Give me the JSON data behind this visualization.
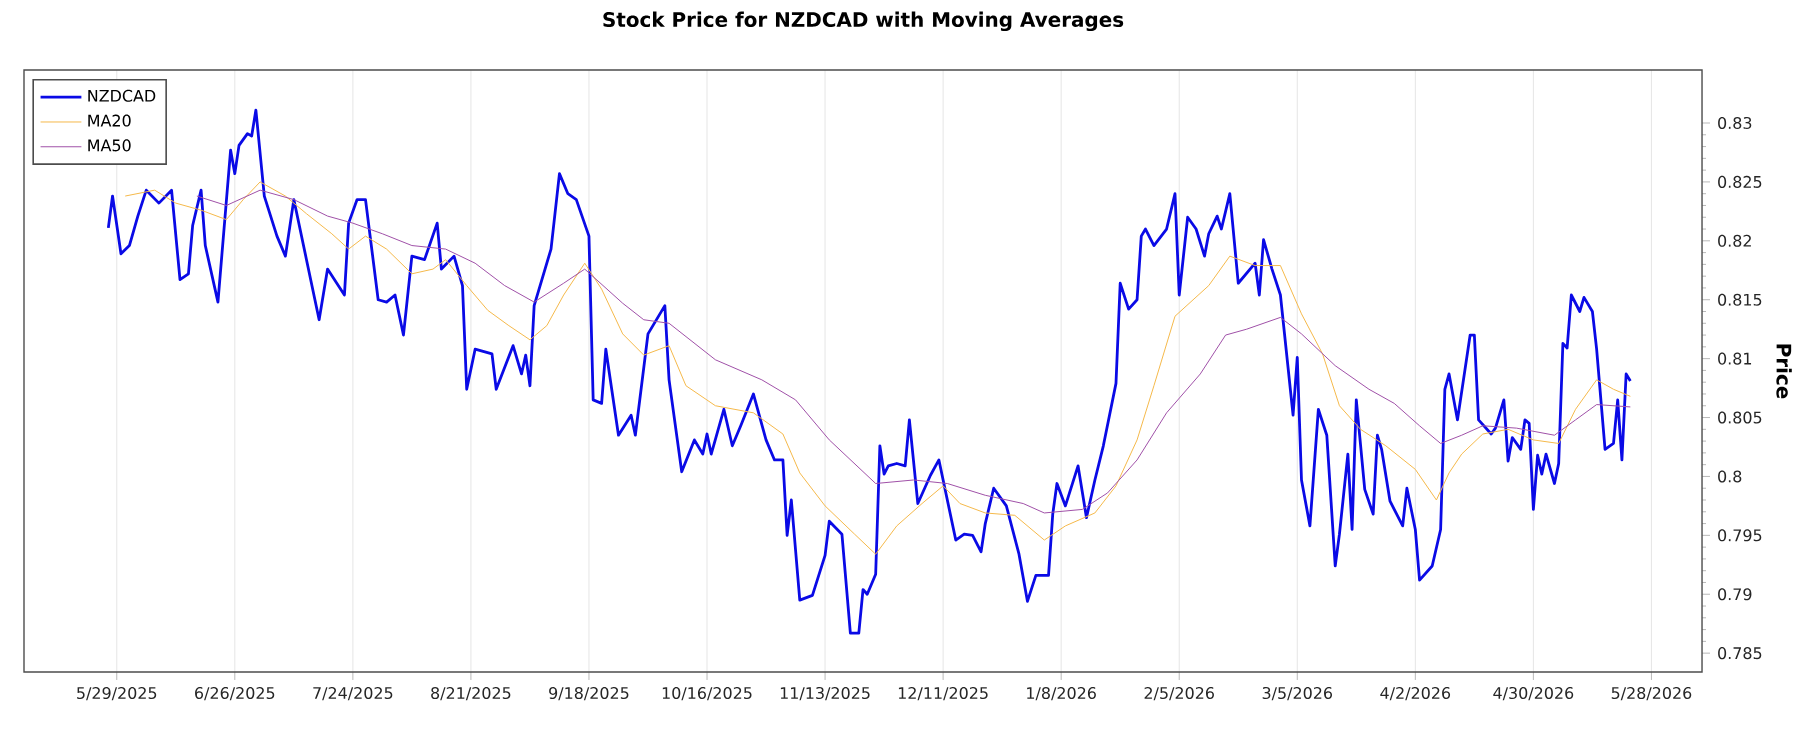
{
  "chart_data": {
    "type": "line",
    "title": "Stock Price for NZDCAD with Moving Averages",
    "ylabel": "Price",
    "xlim": [
      "2025-05-07",
      "2026-06-09"
    ],
    "xticks": [
      {
        "value": "2025-05-29",
        "label": "5/29/2025"
      },
      {
        "value": "2025-06-26",
        "label": "6/26/2025"
      },
      {
        "value": "2025-07-24",
        "label": "7/24/2025"
      },
      {
        "value": "2025-08-21",
        "label": "8/21/2025"
      },
      {
        "value": "2025-09-18",
        "label": "9/18/2025"
      },
      {
        "value": "2025-10-16",
        "label": "10/16/2025"
      },
      {
        "value": "2025-11-13",
        "label": "11/13/2025"
      },
      {
        "value": "2025-12-11",
        "label": "12/11/2025"
      },
      {
        "value": "2026-01-08",
        "label": "1/8/2026"
      },
      {
        "value": "2026-02-05",
        "label": "2/5/2026"
      },
      {
        "value": "2026-03-05",
        "label": "3/5/2026"
      },
      {
        "value": "2026-04-02",
        "label": "4/2/2026"
      },
      {
        "value": "2026-04-30",
        "label": "4/30/2026"
      },
      {
        "value": "2026-05-28",
        "label": "5/28/2026"
      }
    ],
    "ylim": [
      0.7834,
      0.8345
    ],
    "yticks": [
      0.785,
      0.79,
      0.795,
      0.8,
      0.805,
      0.81,
      0.815,
      0.82,
      0.825,
      0.83
    ],
    "grid": "x",
    "legend": "top left",
    "marker": "none",
    "line_style": "solid",
    "series": [
      {
        "name": "NZDCAD",
        "color": "#0a0ae6",
        "x": [
          "2025-05-27",
          "2025-05-28",
          "2025-05-30",
          "2025-06-01",
          "2025-06-03",
          "2025-06-05",
          "2025-06-08",
          "2025-06-11",
          "2025-06-13",
          "2025-06-15",
          "2025-06-16",
          "2025-06-18",
          "2025-06-19",
          "2025-06-22",
          "2025-06-25",
          "2025-06-26",
          "2025-06-27",
          "2025-06-29",
          "2025-06-30",
          "2025-07-01",
          "2025-07-03",
          "2025-07-06",
          "2025-07-08",
          "2025-07-10",
          "2025-07-13",
          "2025-07-16",
          "2025-07-18",
          "2025-07-22",
          "2025-07-23",
          "2025-07-25",
          "2025-07-27",
          "2025-07-30",
          "2025-08-01",
          "2025-08-03",
          "2025-08-05",
          "2025-08-07",
          "2025-08-10",
          "2025-08-13",
          "2025-08-14",
          "2025-08-17",
          "2025-08-19",
          "2025-08-20",
          "2025-08-22",
          "2025-08-26",
          "2025-08-27",
          "2025-08-31",
          "2025-09-02",
          "2025-09-03",
          "2025-09-04",
          "2025-09-05",
          "2025-09-09",
          "2025-09-11",
          "2025-09-13",
          "2025-09-15",
          "2025-09-18",
          "2025-09-19",
          "2025-09-21",
          "2025-09-22",
          "2025-09-25",
          "2025-09-28",
          "2025-09-29",
          "2025-10-02",
          "2025-10-06",
          "2025-10-07",
          "2025-10-10",
          "2025-10-13",
          "2025-10-15",
          "2025-10-16",
          "2025-10-17",
          "2025-10-20",
          "2025-10-22",
          "2025-10-24",
          "2025-10-27",
          "2025-10-30",
          "2025-11-01",
          "2025-11-03",
          "2025-11-04",
          "2025-11-05",
          "2025-11-07",
          "2025-11-10",
          "2025-11-13",
          "2025-11-14",
          "2025-11-17",
          "2025-11-19",
          "2025-11-21",
          "2025-11-22",
          "2025-11-23",
          "2025-11-25",
          "2025-11-26",
          "2025-11-27",
          "2025-11-28",
          "2025-11-30",
          "2025-12-02",
          "2025-12-03",
          "2025-12-05",
          "2025-12-08",
          "2025-12-10",
          "2025-12-12",
          "2025-12-14",
          "2025-12-16",
          "2025-12-18",
          "2025-12-20",
          "2025-12-21",
          "2025-12-23",
          "2025-12-26",
          "2025-12-29",
          "2025-12-31",
          "2026-01-02",
          "2026-01-05",
          "2026-01-06",
          "2026-01-07",
          "2026-01-09",
          "2026-01-12",
          "2026-01-14",
          "2026-01-16",
          "2026-01-18",
          "2026-01-21",
          "2026-01-22",
          "2026-01-24",
          "2026-01-26",
          "2026-01-27",
          "2026-01-28",
          "2026-01-30",
          "2026-02-02",
          "2026-02-04",
          "2026-02-05",
          "2026-02-07",
          "2026-02-09",
          "2026-02-11",
          "2026-02-12",
          "2026-02-14",
          "2026-02-15",
          "2026-02-17",
          "2026-02-19",
          "2026-02-23",
          "2026-02-24",
          "2026-02-25",
          "2026-02-27",
          "2026-03-01",
          "2026-03-04",
          "2026-03-05",
          "2026-03-06",
          "2026-03-08",
          "2026-03-10",
          "2026-03-12",
          "2026-03-14",
          "2026-03-15",
          "2026-03-17",
          "2026-03-18",
          "2026-03-19",
          "2026-03-21",
          "2026-03-23",
          "2026-03-24",
          "2026-03-25",
          "2026-03-27",
          "2026-03-30",
          "2026-03-31",
          "2026-04-02",
          "2026-04-03",
          "2026-04-06",
          "2026-04-08",
          "2026-04-09",
          "2026-04-10",
          "2026-04-12",
          "2026-04-15",
          "2026-04-16",
          "2026-04-17",
          "2026-04-20",
          "2026-04-21",
          "2026-04-23",
          "2026-04-24",
          "2026-04-25",
          "2026-04-27",
          "2026-04-28",
          "2026-04-29",
          "2026-04-30",
          "2026-05-01",
          "2026-05-02",
          "2026-05-03",
          "2026-05-05",
          "2026-05-06",
          "2026-05-07",
          "2026-05-08",
          "2026-05-09",
          "2026-05-11",
          "2026-05-12",
          "2026-05-14",
          "2026-05-15",
          "2026-05-17",
          "2026-05-19",
          "2026-05-20",
          "2026-05-21",
          "2026-05-22",
          "2026-05-23"
        ],
        "values": [
          0.8211,
          0.8238,
          0.8189,
          0.8196,
          0.8221,
          0.8243,
          0.8232,
          0.8243,
          0.8167,
          0.8172,
          0.8213,
          0.8243,
          0.8196,
          0.8148,
          0.8277,
          0.8257,
          0.8281,
          0.8291,
          0.8289,
          0.8311,
          0.8238,
          0.8204,
          0.8187,
          0.8235,
          0.8184,
          0.8133,
          0.8176,
          0.8154,
          0.8215,
          0.8235,
          0.8235,
          0.815,
          0.8148,
          0.8154,
          0.812,
          0.8187,
          0.8184,
          0.8215,
          0.8176,
          0.8187,
          0.8162,
          0.8074,
          0.8108,
          0.8104,
          0.8074,
          0.8111,
          0.8087,
          0.8103,
          0.8077,
          0.8145,
          0.8193,
          0.8257,
          0.824,
          0.8235,
          0.8204,
          0.8065,
          0.8062,
          0.8108,
          0.8035,
          0.8052,
          0.8035,
          0.8121,
          0.8145,
          0.8082,
          0.8004,
          0.8031,
          0.8019,
          0.8036,
          0.8019,
          0.8057,
          0.8026,
          0.8043,
          0.807,
          0.8031,
          0.8014,
          0.8014,
          0.795,
          0.798,
          0.7895,
          0.7899,
          0.7933,
          0.7962,
          0.7951,
          0.7867,
          0.7867,
          0.7904,
          0.79,
          0.7917,
          0.8026,
          0.8002,
          0.8009,
          0.8011,
          0.8009,
          0.8048,
          0.7977,
          0.8001,
          0.8014,
          0.798,
          0.7946,
          0.7951,
          0.795,
          0.7936,
          0.796,
          0.799,
          0.7975,
          0.7934,
          0.7894,
          0.7916,
          0.7916,
          0.7968,
          0.7994,
          0.7975,
          0.8009,
          0.7965,
          0.7997,
          0.8026,
          0.8079,
          0.8164,
          0.8142,
          0.815,
          0.8204,
          0.821,
          0.8196,
          0.821,
          0.824,
          0.8154,
          0.822,
          0.821,
          0.8187,
          0.8206,
          0.8221,
          0.821,
          0.824,
          0.8164,
          0.8181,
          0.8154,
          0.8201,
          0.8176,
          0.8154,
          0.8052,
          0.8101,
          0.7997,
          0.7958,
          0.8057,
          0.8035,
          0.7924,
          0.7951,
          0.8019,
          0.7955,
          0.8065,
          0.7989,
          0.7968,
          0.8035,
          0.8023,
          0.7979,
          0.7958,
          0.799,
          0.7955,
          0.7912,
          0.7924,
          0.7955,
          0.8074,
          0.8087,
          0.8048,
          0.812,
          0.812,
          0.8048,
          0.8036,
          0.8041,
          0.8065,
          0.8013,
          0.8033,
          0.8023,
          0.8048,
          0.8045,
          0.7972,
          0.8018,
          0.8002,
          0.8019,
          0.7994,
          0.8011,
          0.8113,
          0.8109,
          0.8154,
          0.814,
          0.8152,
          0.814,
          0.8108,
          0.8023,
          0.8028,
          0.8065,
          0.8014,
          0.8087,
          0.8081
        ]
      },
      {
        "name": "MA20",
        "color": "#f5b94a",
        "x": [
          "2025-05-31",
          "2025-06-07",
          "2025-06-12",
          "2025-06-18",
          "2025-06-24",
          "2025-06-28",
          "2025-07-02",
          "2025-07-08",
          "2025-07-13",
          "2025-07-19",
          "2025-07-23",
          "2025-07-27",
          "2025-08-01",
          "2025-08-07",
          "2025-08-12",
          "2025-08-15",
          "2025-08-20",
          "2025-08-25",
          "2025-08-30",
          "2025-09-04",
          "2025-09-08",
          "2025-09-12",
          "2025-09-17",
          "2025-09-21",
          "2025-09-26",
          "2025-10-01",
          "2025-10-07",
          "2025-10-11",
          "2025-10-18",
          "2025-10-27",
          "2025-11-03",
          "2025-11-07",
          "2025-11-13",
          "2025-11-20",
          "2025-11-25",
          "2025-11-30",
          "2025-12-06",
          "2025-12-11",
          "2025-12-15",
          "2025-12-21",
          "2025-12-28",
          "2026-01-04",
          "2026-01-09",
          "2026-01-16",
          "2026-01-21",
          "2026-01-26",
          "2026-01-30",
          "2026-02-04",
          "2026-02-12",
          "2026-02-17",
          "2026-02-23",
          "2026-03-01",
          "2026-03-06",
          "2026-03-11",
          "2026-03-15",
          "2026-03-20",
          "2026-03-26",
          "2026-04-02",
          "2026-04-07",
          "2026-04-10",
          "2026-04-13",
          "2026-04-18",
          "2026-04-24",
          "2026-04-30",
          "2026-05-06",
          "2026-05-10",
          "2026-05-15",
          "2026-05-19",
          "2026-05-23"
        ],
        "values": [
          0.8238,
          0.8243,
          0.8232,
          0.8226,
          0.8218,
          0.8235,
          0.825,
          0.8238,
          0.8223,
          0.8206,
          0.8193,
          0.8204,
          0.8193,
          0.8172,
          0.8176,
          0.8184,
          0.8162,
          0.8141,
          0.8128,
          0.8116,
          0.8128,
          0.8154,
          0.8181,
          0.8159,
          0.8121,
          0.8103,
          0.8111,
          0.8077,
          0.806,
          0.8054,
          0.8036,
          0.8003,
          0.7975,
          0.7951,
          0.7934,
          0.7958,
          0.7977,
          0.7992,
          0.7977,
          0.7969,
          0.7967,
          0.7946,
          0.7958,
          0.7969,
          0.7992,
          0.8031,
          0.8077,
          0.8136,
          0.8162,
          0.8187,
          0.8179,
          0.8179,
          0.8138,
          0.8104,
          0.806,
          0.804,
          0.8026,
          0.8006,
          0.798,
          0.8003,
          0.8019,
          0.8036,
          0.804,
          0.8031,
          0.8028,
          0.8057,
          0.8082,
          0.8074,
          0.8068
        ]
      },
      {
        "name": "MA50",
        "color": "#a050a8",
        "x": [
          "2025-06-17",
          "2025-06-24",
          "2025-07-02",
          "2025-07-10",
          "2025-07-18",
          "2025-07-24",
          "2025-07-31",
          "2025-08-07",
          "2025-08-15",
          "2025-08-22",
          "2025-08-29",
          "2025-09-05",
          "2025-09-12",
          "2025-09-17",
          "2025-09-26",
          "2025-10-01",
          "2025-10-07",
          "2025-10-18",
          "2025-10-29",
          "2025-11-06",
          "2025-11-14",
          "2025-11-25",
          "2025-12-04",
          "2025-12-12",
          "2025-12-21",
          "2025-12-30",
          "2026-01-04",
          "2026-01-13",
          "2026-01-19",
          "2026-01-26",
          "2026-02-02",
          "2026-02-10",
          "2026-02-16",
          "2026-02-21",
          "2026-03-01",
          "2026-03-06",
          "2026-03-14",
          "2026-03-22",
          "2026-03-28",
          "2026-04-03",
          "2026-04-08",
          "2026-04-13",
          "2026-04-18",
          "2026-04-26",
          "2026-05-05",
          "2026-05-10",
          "2026-05-15",
          "2026-05-23"
        ],
        "values": [
          0.8238,
          0.823,
          0.8243,
          0.8235,
          0.8221,
          0.8215,
          0.8206,
          0.8196,
          0.8193,
          0.8181,
          0.8162,
          0.8148,
          0.8164,
          0.8176,
          0.8147,
          0.8133,
          0.813,
          0.8099,
          0.8082,
          0.8065,
          0.8031,
          0.7994,
          0.7997,
          0.7994,
          0.7984,
          0.7977,
          0.7969,
          0.7972,
          0.7986,
          0.8014,
          0.8054,
          0.8087,
          0.812,
          0.8125,
          0.8135,
          0.8121,
          0.8094,
          0.8074,
          0.8062,
          0.8043,
          0.8028,
          0.8035,
          0.8043,
          0.8041,
          0.8035,
          0.8048,
          0.8061,
          0.8059
        ]
      }
    ]
  }
}
